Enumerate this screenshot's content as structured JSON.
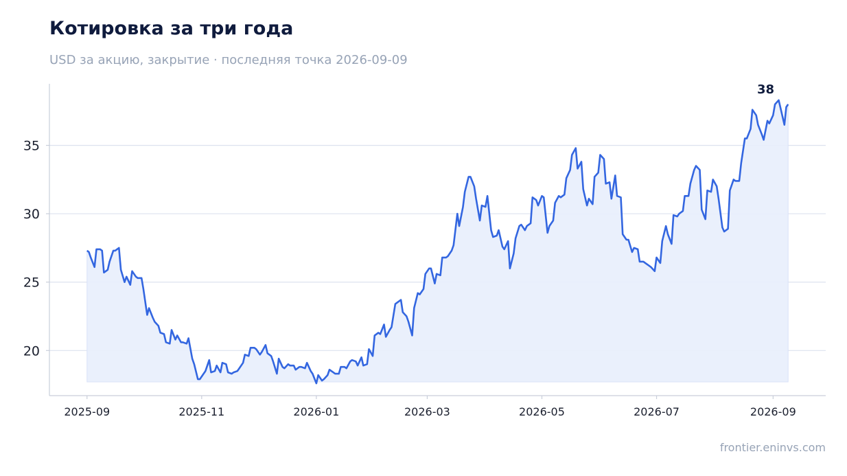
{
  "header": {
    "title": "Котировка за три года",
    "subtitle": "USD за акцию, закрытие · последняя точка 2026-09-09"
  },
  "footer": {
    "source": "frontier.eninvs.com"
  },
  "colors": {
    "line": "#3366e0",
    "fill": "#e8eefc",
    "grid": "#dde2ef",
    "axis": "#c9ceda"
  },
  "chart_data": {
    "type": "area",
    "title": "Котировка за три года",
    "subtitle": "USD за акцию, закрытие · последняя точка 2026-09-09",
    "xlabel": "",
    "ylabel": "",
    "y_ticks": [
      20,
      25,
      30,
      35
    ],
    "ylim": [
      16.7,
      39.5
    ],
    "x_ticks": [
      "2025-09",
      "2025-11",
      "2026-01",
      "2026-03",
      "2026-05",
      "2026-07",
      "2026-09"
    ],
    "xlim": [
      "2025-08-12",
      "2026-09-29"
    ],
    "grid": "horizontal",
    "last_value_label": "38",
    "series": [
      {
        "points": [
          [
            "2025-09-01",
            27.3
          ],
          [
            "2025-09-02",
            27.2
          ],
          [
            "2025-09-03",
            26.8
          ],
          [
            "2025-09-05",
            26.1
          ],
          [
            "2025-09-06",
            27.4
          ],
          [
            "2025-09-08",
            27.4
          ],
          [
            "2025-09-09",
            27.3
          ],
          [
            "2025-09-10",
            25.7
          ],
          [
            "2025-09-12",
            25.9
          ],
          [
            "2025-09-13",
            26.5
          ],
          [
            "2025-09-15",
            27.3
          ],
          [
            "2025-09-16",
            27.3
          ],
          [
            "2025-09-18",
            27.5
          ],
          [
            "2025-09-19",
            25.9
          ],
          [
            "2025-09-21",
            25.0
          ],
          [
            "2025-09-22",
            25.4
          ],
          [
            "2025-09-24",
            24.8
          ],
          [
            "2025-09-25",
            25.8
          ],
          [
            "2025-09-27",
            25.4
          ],
          [
            "2025-09-28",
            25.3
          ],
          [
            "2025-09-30",
            25.3
          ],
          [
            "2025-10-01",
            24.5
          ],
          [
            "2025-10-03",
            22.6
          ],
          [
            "2025-10-04",
            23.1
          ],
          [
            "2025-10-06",
            22.4
          ],
          [
            "2025-10-07",
            22.1
          ],
          [
            "2025-10-09",
            21.8
          ],
          [
            "2025-10-10",
            21.3
          ],
          [
            "2025-10-12",
            21.2
          ],
          [
            "2025-10-13",
            20.6
          ],
          [
            "2025-10-15",
            20.5
          ],
          [
            "2025-10-16",
            21.5
          ],
          [
            "2025-10-18",
            20.8
          ],
          [
            "2025-10-19",
            21.1
          ],
          [
            "2025-10-21",
            20.6
          ],
          [
            "2025-10-22",
            20.6
          ],
          [
            "2025-10-24",
            20.5
          ],
          [
            "2025-10-25",
            20.9
          ],
          [
            "2025-10-27",
            19.4
          ],
          [
            "2025-10-28",
            19.0
          ],
          [
            "2025-10-30",
            17.9
          ],
          [
            "2025-10-31",
            17.9
          ],
          [
            "2025-11-02",
            18.3
          ],
          [
            "2025-11-03",
            18.5
          ],
          [
            "2025-11-05",
            19.3
          ],
          [
            "2025-11-06",
            18.4
          ],
          [
            "2025-11-08",
            18.5
          ],
          [
            "2025-11-09",
            18.9
          ],
          [
            "2025-11-11",
            18.4
          ],
          [
            "2025-11-12",
            19.1
          ],
          [
            "2025-11-14",
            19.0
          ],
          [
            "2025-11-15",
            18.4
          ],
          [
            "2025-11-17",
            18.3
          ],
          [
            "2025-11-18",
            18.4
          ],
          [
            "2025-11-20",
            18.5
          ],
          [
            "2025-11-21",
            18.7
          ],
          [
            "2025-11-23",
            19.1
          ],
          [
            "2025-11-24",
            19.7
          ],
          [
            "2025-11-26",
            19.6
          ],
          [
            "2025-11-27",
            20.2
          ],
          [
            "2025-11-29",
            20.2
          ],
          [
            "2025-11-30",
            20.1
          ],
          [
            "2025-12-02",
            19.7
          ],
          [
            "2025-12-03",
            19.9
          ],
          [
            "2025-12-05",
            20.4
          ],
          [
            "2025-12-06",
            19.8
          ],
          [
            "2025-12-08",
            19.6
          ],
          [
            "2025-12-09",
            19.2
          ],
          [
            "2025-12-11",
            18.3
          ],
          [
            "2025-12-12",
            19.4
          ],
          [
            "2025-12-14",
            18.8
          ],
          [
            "2025-12-15",
            18.7
          ],
          [
            "2025-12-17",
            19.0
          ],
          [
            "2025-12-18",
            18.9
          ],
          [
            "2025-12-20",
            18.9
          ],
          [
            "2025-12-21",
            18.6
          ],
          [
            "2025-12-23",
            18.8
          ],
          [
            "2025-12-24",
            18.8
          ],
          [
            "2025-12-26",
            18.7
          ],
          [
            "2025-12-27",
            19.1
          ],
          [
            "2025-12-29",
            18.5
          ],
          [
            "2025-12-30",
            18.3
          ],
          [
            "2026-01-01",
            17.6
          ],
          [
            "2026-01-02",
            18.2
          ],
          [
            "2026-01-04",
            17.8
          ],
          [
            "2026-01-05",
            17.9
          ],
          [
            "2026-01-07",
            18.2
          ],
          [
            "2026-01-08",
            18.6
          ],
          [
            "2026-01-10",
            18.4
          ],
          [
            "2026-01-11",
            18.3
          ],
          [
            "2026-01-13",
            18.3
          ],
          [
            "2026-01-14",
            18.8
          ],
          [
            "2026-01-16",
            18.8
          ],
          [
            "2026-01-17",
            18.7
          ],
          [
            "2026-01-19",
            19.2
          ],
          [
            "2026-01-20",
            19.3
          ],
          [
            "2026-01-22",
            19.2
          ],
          [
            "2026-01-23",
            18.9
          ],
          [
            "2026-01-25",
            19.5
          ],
          [
            "2026-01-26",
            18.9
          ],
          [
            "2026-01-28",
            19.0
          ],
          [
            "2026-01-29",
            20.1
          ],
          [
            "2026-01-31",
            19.6
          ],
          [
            "2026-02-01",
            21.1
          ],
          [
            "2026-02-03",
            21.3
          ],
          [
            "2026-02-04",
            21.2
          ],
          [
            "2026-02-06",
            21.9
          ],
          [
            "2026-02-07",
            21.0
          ],
          [
            "2026-02-09",
            21.5
          ],
          [
            "2026-02-10",
            21.7
          ],
          [
            "2026-02-12",
            23.4
          ],
          [
            "2026-02-13",
            23.5
          ],
          [
            "2026-02-15",
            23.7
          ],
          [
            "2026-02-16",
            22.8
          ],
          [
            "2026-02-18",
            22.5
          ],
          [
            "2026-02-19",
            22.1
          ],
          [
            "2026-02-21",
            21.1
          ],
          [
            "2026-02-22",
            23.1
          ],
          [
            "2026-02-24",
            24.2
          ],
          [
            "2026-02-25",
            24.1
          ],
          [
            "2026-02-27",
            24.5
          ],
          [
            "2026-02-28",
            25.6
          ],
          [
            "2026-03-02",
            26.0
          ],
          [
            "2026-03-03",
            26.0
          ],
          [
            "2026-03-05",
            24.9
          ],
          [
            "2026-03-06",
            25.6
          ],
          [
            "2026-03-08",
            25.5
          ],
          [
            "2026-03-09",
            26.8
          ],
          [
            "2026-03-11",
            26.8
          ],
          [
            "2026-03-12",
            26.9
          ],
          [
            "2026-03-14",
            27.3
          ],
          [
            "2026-03-15",
            27.7
          ],
          [
            "2026-03-17",
            30.0
          ],
          [
            "2026-03-18",
            29.1
          ],
          [
            "2026-03-20",
            30.5
          ],
          [
            "2026-03-21",
            31.6
          ],
          [
            "2026-03-23",
            32.7
          ],
          [
            "2026-03-24",
            32.7
          ],
          [
            "2026-03-26",
            32.0
          ],
          [
            "2026-03-27",
            31.1
          ],
          [
            "2026-03-29",
            29.5
          ],
          [
            "2026-03-30",
            30.6
          ],
          [
            "2026-04-01",
            30.5
          ],
          [
            "2026-04-02",
            31.3
          ],
          [
            "2026-04-04",
            28.8
          ],
          [
            "2026-04-05",
            28.3
          ],
          [
            "2026-04-07",
            28.4
          ],
          [
            "2026-04-08",
            28.8
          ],
          [
            "2026-04-10",
            27.6
          ],
          [
            "2026-04-11",
            27.4
          ],
          [
            "2026-04-13",
            28.0
          ],
          [
            "2026-04-14",
            26.0
          ],
          [
            "2026-04-16",
            27.1
          ],
          [
            "2026-04-17",
            28.2
          ],
          [
            "2026-04-19",
            29.1
          ],
          [
            "2026-04-20",
            29.2
          ],
          [
            "2026-04-22",
            28.8
          ],
          [
            "2026-04-23",
            29.1
          ],
          [
            "2026-04-25",
            29.3
          ],
          [
            "2026-04-26",
            31.2
          ],
          [
            "2026-04-28",
            31.0
          ],
          [
            "2026-04-29",
            30.6
          ],
          [
            "2026-05-01",
            31.3
          ],
          [
            "2026-05-02",
            31.2
          ],
          [
            "2026-05-04",
            28.6
          ],
          [
            "2026-05-05",
            29.1
          ],
          [
            "2026-05-07",
            29.5
          ],
          [
            "2026-05-08",
            30.8
          ],
          [
            "2026-05-10",
            31.3
          ],
          [
            "2026-05-11",
            31.2
          ],
          [
            "2026-05-13",
            31.4
          ],
          [
            "2026-05-14",
            32.6
          ],
          [
            "2026-05-16",
            33.2
          ],
          [
            "2026-05-17",
            34.3
          ],
          [
            "2026-05-19",
            34.8
          ],
          [
            "2026-05-20",
            33.3
          ],
          [
            "2026-05-22",
            33.8
          ],
          [
            "2026-05-23",
            31.8
          ],
          [
            "2026-05-25",
            30.6
          ],
          [
            "2026-05-26",
            31.1
          ],
          [
            "2026-05-28",
            30.7
          ],
          [
            "2026-05-29",
            32.7
          ],
          [
            "2026-05-31",
            33.0
          ],
          [
            "2026-06-01",
            34.3
          ],
          [
            "2026-06-03",
            34.0
          ],
          [
            "2026-06-04",
            32.2
          ],
          [
            "2026-06-06",
            32.3
          ],
          [
            "2026-06-07",
            31.1
          ],
          [
            "2026-06-09",
            32.8
          ],
          [
            "2026-06-10",
            31.3
          ],
          [
            "2026-06-12",
            31.2
          ],
          [
            "2026-06-13",
            28.5
          ],
          [
            "2026-06-15",
            28.1
          ],
          [
            "2026-06-16",
            28.1
          ],
          [
            "2026-06-18",
            27.2
          ],
          [
            "2026-06-19",
            27.5
          ],
          [
            "2026-06-21",
            27.4
          ],
          [
            "2026-06-22",
            26.5
          ],
          [
            "2026-06-24",
            26.5
          ],
          [
            "2026-06-25",
            26.4
          ],
          [
            "2026-06-27",
            26.2
          ],
          [
            "2026-06-28",
            26.1
          ],
          [
            "2026-06-30",
            25.8
          ],
          [
            "2026-07-01",
            26.8
          ],
          [
            "2026-07-03",
            26.4
          ],
          [
            "2026-07-04",
            28.0
          ],
          [
            "2026-07-06",
            29.1
          ],
          [
            "2026-07-07",
            28.5
          ],
          [
            "2026-07-09",
            27.8
          ],
          [
            "2026-07-10",
            29.9
          ],
          [
            "2026-07-12",
            29.8
          ],
          [
            "2026-07-13",
            30.0
          ],
          [
            "2026-07-15",
            30.2
          ],
          [
            "2026-07-16",
            31.3
          ],
          [
            "2026-07-18",
            31.3
          ],
          [
            "2026-07-19",
            32.2
          ],
          [
            "2026-07-21",
            33.2
          ],
          [
            "2026-07-22",
            33.5
          ],
          [
            "2026-07-24",
            33.2
          ],
          [
            "2026-07-25",
            30.3
          ],
          [
            "2026-07-27",
            29.6
          ],
          [
            "2026-07-28",
            31.7
          ],
          [
            "2026-07-30",
            31.6
          ],
          [
            "2026-07-31",
            32.5
          ],
          [
            "2026-08-02",
            32.0
          ],
          [
            "2026-08-03",
            31.1
          ],
          [
            "2026-08-05",
            29.0
          ],
          [
            "2026-08-06",
            28.7
          ],
          [
            "2026-08-08",
            28.9
          ],
          [
            "2026-08-09",
            31.7
          ],
          [
            "2026-08-11",
            32.5
          ],
          [
            "2026-08-12",
            32.4
          ],
          [
            "2026-08-14",
            32.4
          ],
          [
            "2026-08-15",
            33.7
          ],
          [
            "2026-08-17",
            35.5
          ],
          [
            "2026-08-18",
            35.5
          ],
          [
            "2026-08-20",
            36.2
          ],
          [
            "2026-08-21",
            37.6
          ],
          [
            "2026-08-23",
            37.2
          ],
          [
            "2026-08-24",
            36.5
          ],
          [
            "2026-08-26",
            35.8
          ],
          [
            "2026-08-27",
            35.4
          ],
          [
            "2026-08-29",
            36.8
          ],
          [
            "2026-08-30",
            36.6
          ],
          [
            "2026-09-01",
            37.2
          ],
          [
            "2026-09-02",
            38.0
          ],
          [
            "2026-09-04",
            38.3
          ],
          [
            "2026-09-05",
            37.7
          ],
          [
            "2026-09-07",
            36.5
          ],
          [
            "2026-09-08",
            37.8
          ],
          [
            "2026-09-09",
            38.0
          ]
        ]
      }
    ]
  }
}
